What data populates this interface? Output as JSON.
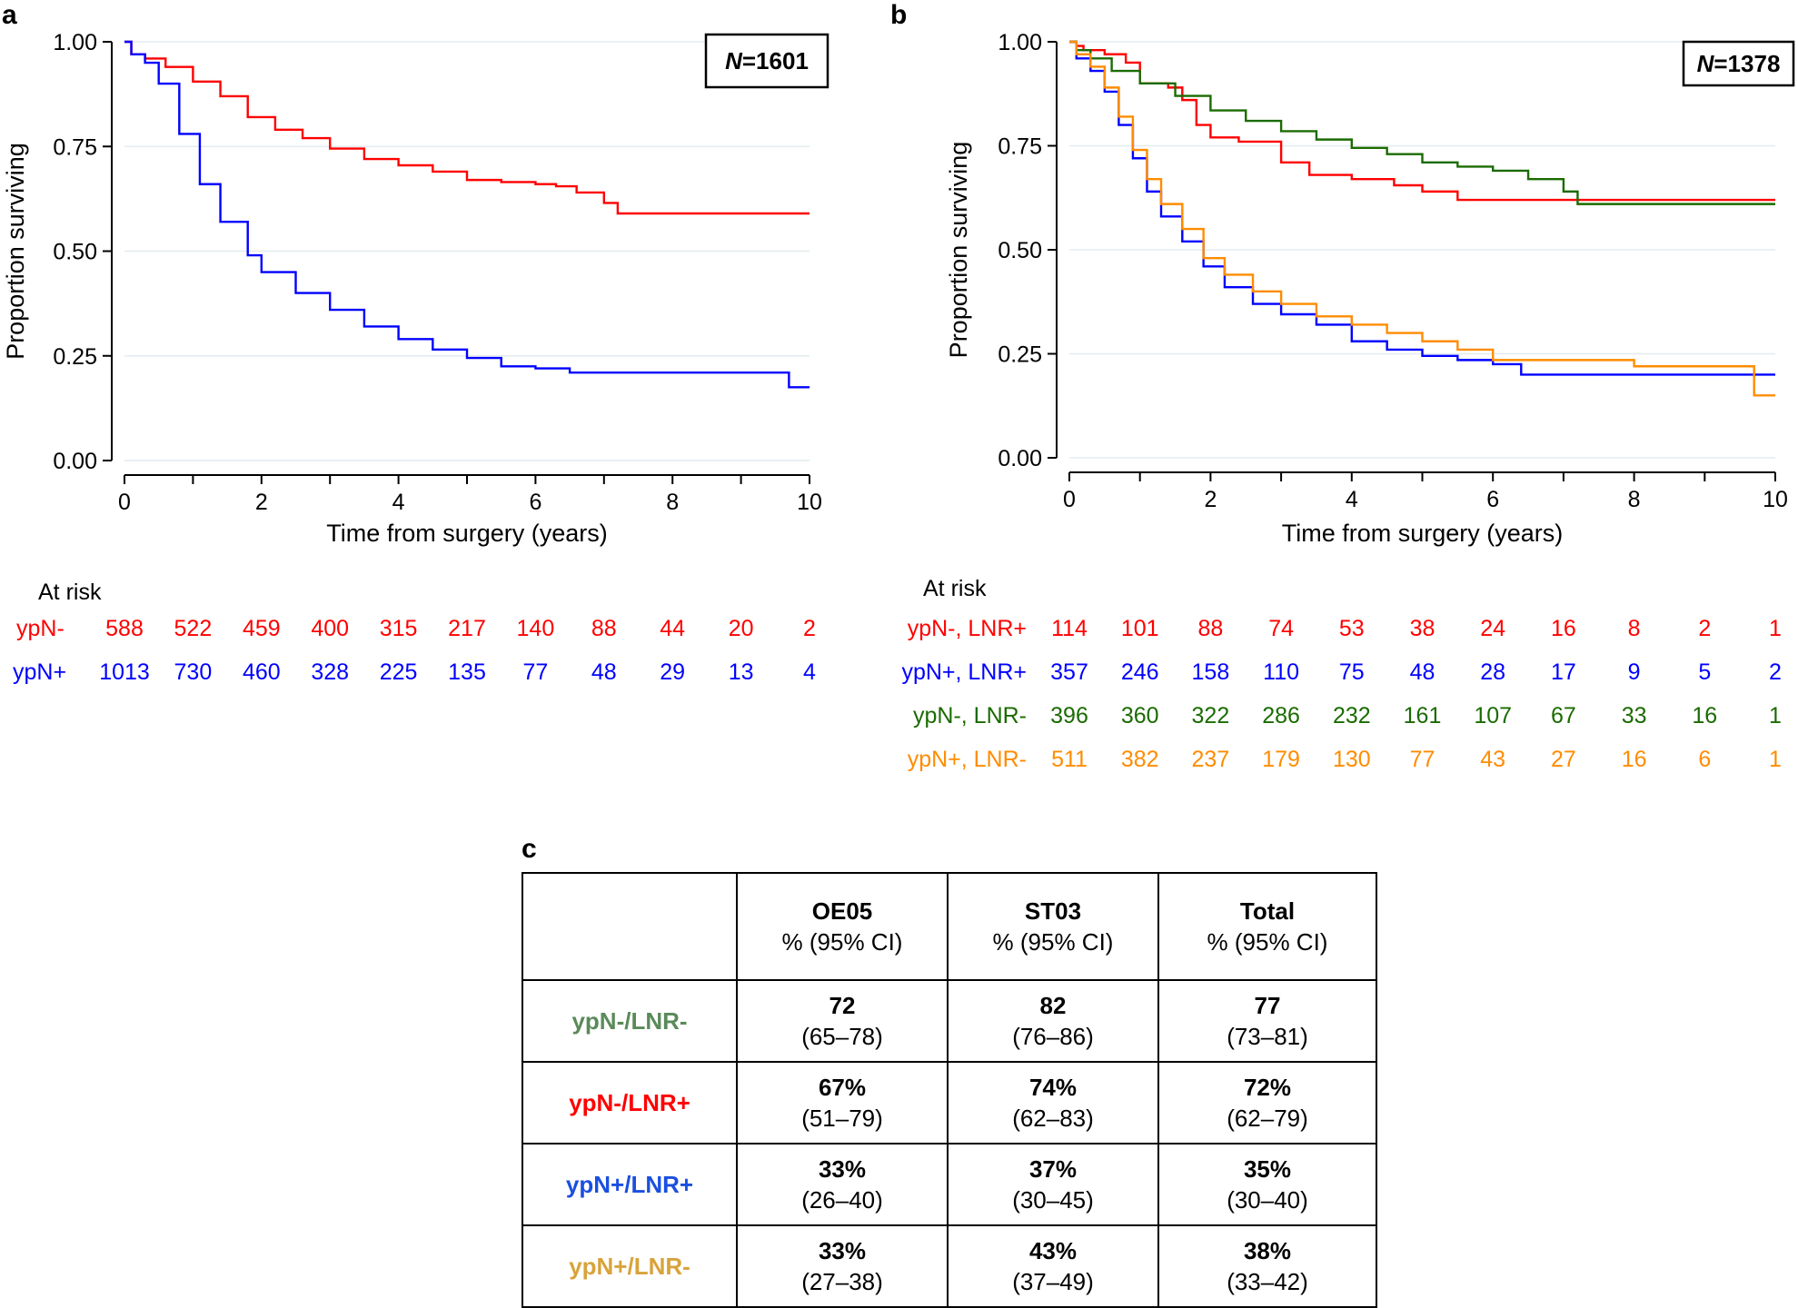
{
  "colors": {
    "red": "#ff0000",
    "blue": "#0000ff",
    "green": "#1a6b00",
    "orange": "#ff8c00",
    "green_label": "#5a8a5a",
    "orange_label": "#d8a33a",
    "blue_label": "#1a4fe0"
  },
  "panel_a": {
    "letter": "a",
    "n_label": "N",
    "n_value": "=1601",
    "at_risk_title": "At risk",
    "at_risk_rows": [
      {
        "label": "ypN-",
        "color": "red",
        "values": [
          "588",
          "522",
          "459",
          "400",
          "315",
          "217",
          "140",
          "88",
          "44",
          "20",
          "2"
        ]
      },
      {
        "label": "ypN+",
        "color": "blue",
        "values": [
          "1013",
          "730",
          "460",
          "328",
          "225",
          "135",
          "77",
          "48",
          "29",
          "13",
          "4"
        ]
      }
    ]
  },
  "panel_b": {
    "letter": "b",
    "n_label": "N",
    "n_value": "=1378",
    "at_risk_title": "At risk",
    "at_risk_rows": [
      {
        "label": "ypN-, LNR+",
        "color": "red",
        "values": [
          "114",
          "101",
          "88",
          "74",
          "53",
          "38",
          "24",
          "16",
          "8",
          "2",
          "1"
        ]
      },
      {
        "label": "ypN+, LNR+",
        "color": "blue",
        "values": [
          "357",
          "246",
          "158",
          "110",
          "75",
          "48",
          "28",
          "17",
          "9",
          "5",
          "2"
        ]
      },
      {
        "label": "ypN-, LNR-",
        "color": "green",
        "values": [
          "396",
          "360",
          "322",
          "286",
          "232",
          "161",
          "107",
          "67",
          "33",
          "16",
          "1"
        ]
      },
      {
        "label": "ypN+, LNR-",
        "color": "orange",
        "values": [
          "511",
          "382",
          "237",
          "179",
          "130",
          "77",
          "43",
          "27",
          "16",
          "6",
          "1"
        ]
      }
    ]
  },
  "chart_data": [
    {
      "type": "line",
      "title": "a",
      "xlabel": "Time from surgery (years)",
      "ylabel": "Proportion surviving",
      "xlim": [
        0,
        10
      ],
      "ylim": [
        0,
        1
      ],
      "xticks": [
        "0",
        "2",
        "4",
        "6",
        "8",
        "10"
      ],
      "yticks": [
        "0.00",
        "0.25",
        "0.50",
        "0.75",
        "1.00"
      ],
      "series": [
        {
          "name": "ypN-",
          "color": "red",
          "x": [
            0,
            0.1,
            0.3,
            0.6,
            1.0,
            1.4,
            1.8,
            2.2,
            2.6,
            3.0,
            3.5,
            4.0,
            4.5,
            5.0,
            5.5,
            6.0,
            6.3,
            6.6,
            7.0,
            7.2,
            8,
            10
          ],
          "y": [
            1.0,
            0.97,
            0.96,
            0.94,
            0.905,
            0.87,
            0.82,
            0.79,
            0.77,
            0.745,
            0.72,
            0.705,
            0.69,
            0.67,
            0.665,
            0.66,
            0.655,
            0.64,
            0.615,
            0.59,
            0.59,
            0.59
          ]
        },
        {
          "name": "ypN+",
          "color": "blue",
          "x": [
            0,
            0.1,
            0.3,
            0.5,
            0.8,
            1.1,
            1.4,
            1.8,
            2.0,
            2.5,
            3.0,
            3.5,
            4.0,
            4.5,
            5.0,
            5.5,
            6.0,
            6.3,
            6.5,
            8,
            9.7,
            9.7,
            10
          ],
          "y": [
            1.0,
            0.97,
            0.95,
            0.9,
            0.78,
            0.66,
            0.57,
            0.49,
            0.45,
            0.4,
            0.36,
            0.32,
            0.29,
            0.265,
            0.245,
            0.225,
            0.22,
            0.22,
            0.21,
            0.21,
            0.2,
            0.175,
            0.175
          ]
        }
      ]
    },
    {
      "type": "line",
      "title": "b",
      "xlabel": "Time from surgery (years)",
      "ylabel": "Proportion surviving",
      "xlim": [
        0,
        10
      ],
      "ylim": [
        0,
        1
      ],
      "xticks": [
        "0",
        "2",
        "4",
        "6",
        "8",
        "10"
      ],
      "yticks": [
        "0.00",
        "0.25",
        "0.50",
        "0.75",
        "1.00"
      ],
      "series": [
        {
          "name": "ypN-, LNR+",
          "color": "red",
          "x": [
            0,
            0.1,
            0.2,
            0.5,
            0.8,
            1.0,
            1.4,
            1.6,
            1.8,
            2.0,
            2.4,
            3.0,
            3.4,
            4.0,
            4.6,
            5.0,
            5.5,
            6.5,
            8,
            10
          ],
          "y": [
            1.0,
            0.99,
            0.98,
            0.97,
            0.95,
            0.9,
            0.89,
            0.86,
            0.8,
            0.77,
            0.76,
            0.71,
            0.68,
            0.67,
            0.655,
            0.64,
            0.62,
            0.62,
            0.62,
            0.62
          ]
        },
        {
          "name": "ypN+, LNR+",
          "color": "blue",
          "x": [
            0,
            0.1,
            0.3,
            0.5,
            0.7,
            0.9,
            1.1,
            1.3,
            1.6,
            1.9,
            2.2,
            2.6,
            3.0,
            3.5,
            4.0,
            4.5,
            5.0,
            5.5,
            6.0,
            6.4,
            7.5,
            8,
            10
          ],
          "y": [
            1.0,
            0.96,
            0.93,
            0.88,
            0.8,
            0.72,
            0.64,
            0.58,
            0.52,
            0.46,
            0.41,
            0.37,
            0.345,
            0.32,
            0.28,
            0.26,
            0.245,
            0.235,
            0.225,
            0.2,
            0.2,
            0.2,
            0.2
          ]
        },
        {
          "name": "ypN-, LNR-",
          "color": "green",
          "x": [
            0,
            0.1,
            0.3,
            0.6,
            1.0,
            1.5,
            2.0,
            2.5,
            3.0,
            3.5,
            4.0,
            4.5,
            5.0,
            5.5,
            6.0,
            6.5,
            7.0,
            7.2,
            8,
            10
          ],
          "y": [
            1.0,
            0.98,
            0.96,
            0.93,
            0.9,
            0.87,
            0.835,
            0.81,
            0.785,
            0.765,
            0.745,
            0.73,
            0.71,
            0.7,
            0.69,
            0.67,
            0.64,
            0.61,
            0.61,
            0.61
          ]
        },
        {
          "name": "ypN+, LNR-",
          "color": "orange",
          "x": [
            0,
            0.1,
            0.3,
            0.5,
            0.7,
            0.9,
            1.1,
            1.3,
            1.6,
            1.9,
            2.2,
            2.6,
            3.0,
            3.5,
            4.0,
            4.5,
            5.0,
            5.5,
            6.0,
            7.0,
            8.0,
            9.7,
            9.7,
            10
          ],
          "y": [
            1.0,
            0.97,
            0.94,
            0.89,
            0.82,
            0.74,
            0.67,
            0.61,
            0.55,
            0.48,
            0.44,
            0.4,
            0.37,
            0.34,
            0.32,
            0.3,
            0.28,
            0.26,
            0.235,
            0.235,
            0.22,
            0.22,
            0.15,
            0.15
          ]
        }
      ]
    }
  ],
  "table": {
    "letter": "c",
    "headers": [
      {
        "name": "OE05",
        "sub": "% (95% CI)"
      },
      {
        "name": "ST03",
        "sub": "% (95% CI)"
      },
      {
        "name": "Total",
        "sub": "% (95% CI)"
      }
    ],
    "rows": [
      {
        "label": "ypN-/LNR-",
        "color": "green_label",
        "cells": [
          {
            "v": "72",
            "ci": "(65–78)"
          },
          {
            "v": "82",
            "ci": "(76–86)"
          },
          {
            "v": "77",
            "ci": "(73–81)"
          }
        ]
      },
      {
        "label": "ypN-/LNR+",
        "color": "red",
        "cells": [
          {
            "v": "67%",
            "ci": "(51–79)"
          },
          {
            "v": "74%",
            "ci": "(62–83)"
          },
          {
            "v": "72%",
            "ci": "(62–79)"
          }
        ]
      },
      {
        "label": "ypN+/LNR+",
        "color": "blue_label",
        "cells": [
          {
            "v": "33%",
            "ci": "(26–40)"
          },
          {
            "v": "37%",
            "ci": "(30–45)"
          },
          {
            "v": "35%",
            "ci": "(30–40)"
          }
        ]
      },
      {
        "label": "ypN+/LNR-",
        "color": "orange_label",
        "cells": [
          {
            "v": "33%",
            "ci": "(27–38)"
          },
          {
            "v": "43%",
            "ci": "(37–49)"
          },
          {
            "v": "38%",
            "ci": "(33–42)"
          }
        ]
      }
    ]
  }
}
